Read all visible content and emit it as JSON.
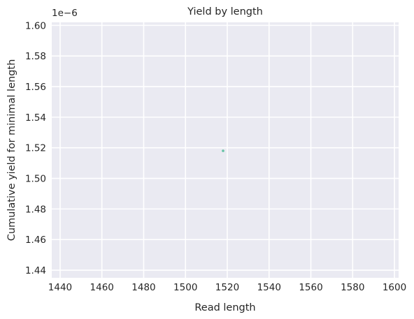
{
  "chart_data": {
    "type": "scatter",
    "title": "Yield by length",
    "xlabel": "Read length",
    "ylabel": "Cumulative yield for minimal length",
    "y_offset_label": "1e−6",
    "x_ticks": [
      1440,
      1460,
      1480,
      1500,
      1520,
      1540,
      1560,
      1580,
      1600
    ],
    "x_tick_labels": [
      "1440",
      "1460",
      "1480",
      "1500",
      "1520",
      "1540",
      "1560",
      "1580",
      "1600"
    ],
    "y_ticks": [
      1.44,
      1.46,
      1.48,
      1.5,
      1.52,
      1.54,
      1.56,
      1.58,
      1.6
    ],
    "y_tick_labels": [
      "1.44",
      "1.46",
      "1.48",
      "1.50",
      "1.52",
      "1.54",
      "1.56",
      "1.58",
      "1.60"
    ],
    "xlim": [
      1436,
      1602
    ],
    "ylim": [
      1.435,
      1.602
    ],
    "y_scale_factor": 1e-06,
    "grid": true,
    "background_color": "#eaeaf2",
    "grid_color": "#ffffff",
    "point_color": "#66c2a5",
    "points": [
      {
        "x": 1518,
        "y": 1.518
      }
    ]
  }
}
